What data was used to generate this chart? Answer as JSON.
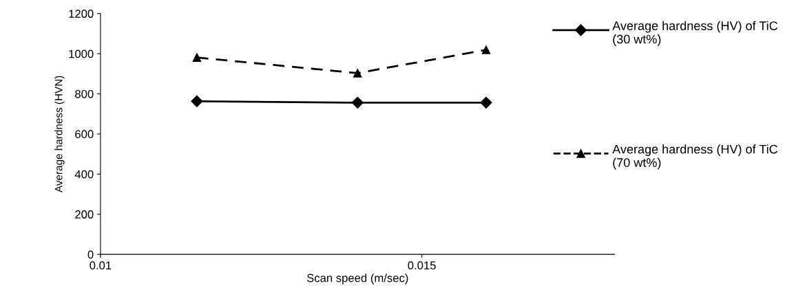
{
  "chart_data": {
    "type": "line",
    "xlabel": "Scan speed (m/sec)",
    "ylabel": "Average hardness (HVN)",
    "x": [
      0.0115,
      0.014,
      0.016
    ],
    "series": [
      {
        "name": "Average hardness (HV) of TiC (30 wt%)",
        "color": "#000000",
        "values": [
          763,
          756,
          756
        ],
        "marker": "diamond",
        "line_style": "solid"
      },
      {
        "name": "Average hardness (HV) of TiC (70 wt%)",
        "color": "#000000",
        "values": [
          981,
          903,
          1019
        ],
        "marker": "triangle",
        "line_style": "dashed"
      }
    ],
    "xlim": [
      0.01,
      0.018
    ],
    "xticks": [
      0.01,
      0.015
    ],
    "ylim": [
      0,
      1200
    ],
    "yticks": [
      0,
      200,
      400,
      600,
      800,
      1000,
      1200
    ],
    "grid": false,
    "legend": "right"
  }
}
